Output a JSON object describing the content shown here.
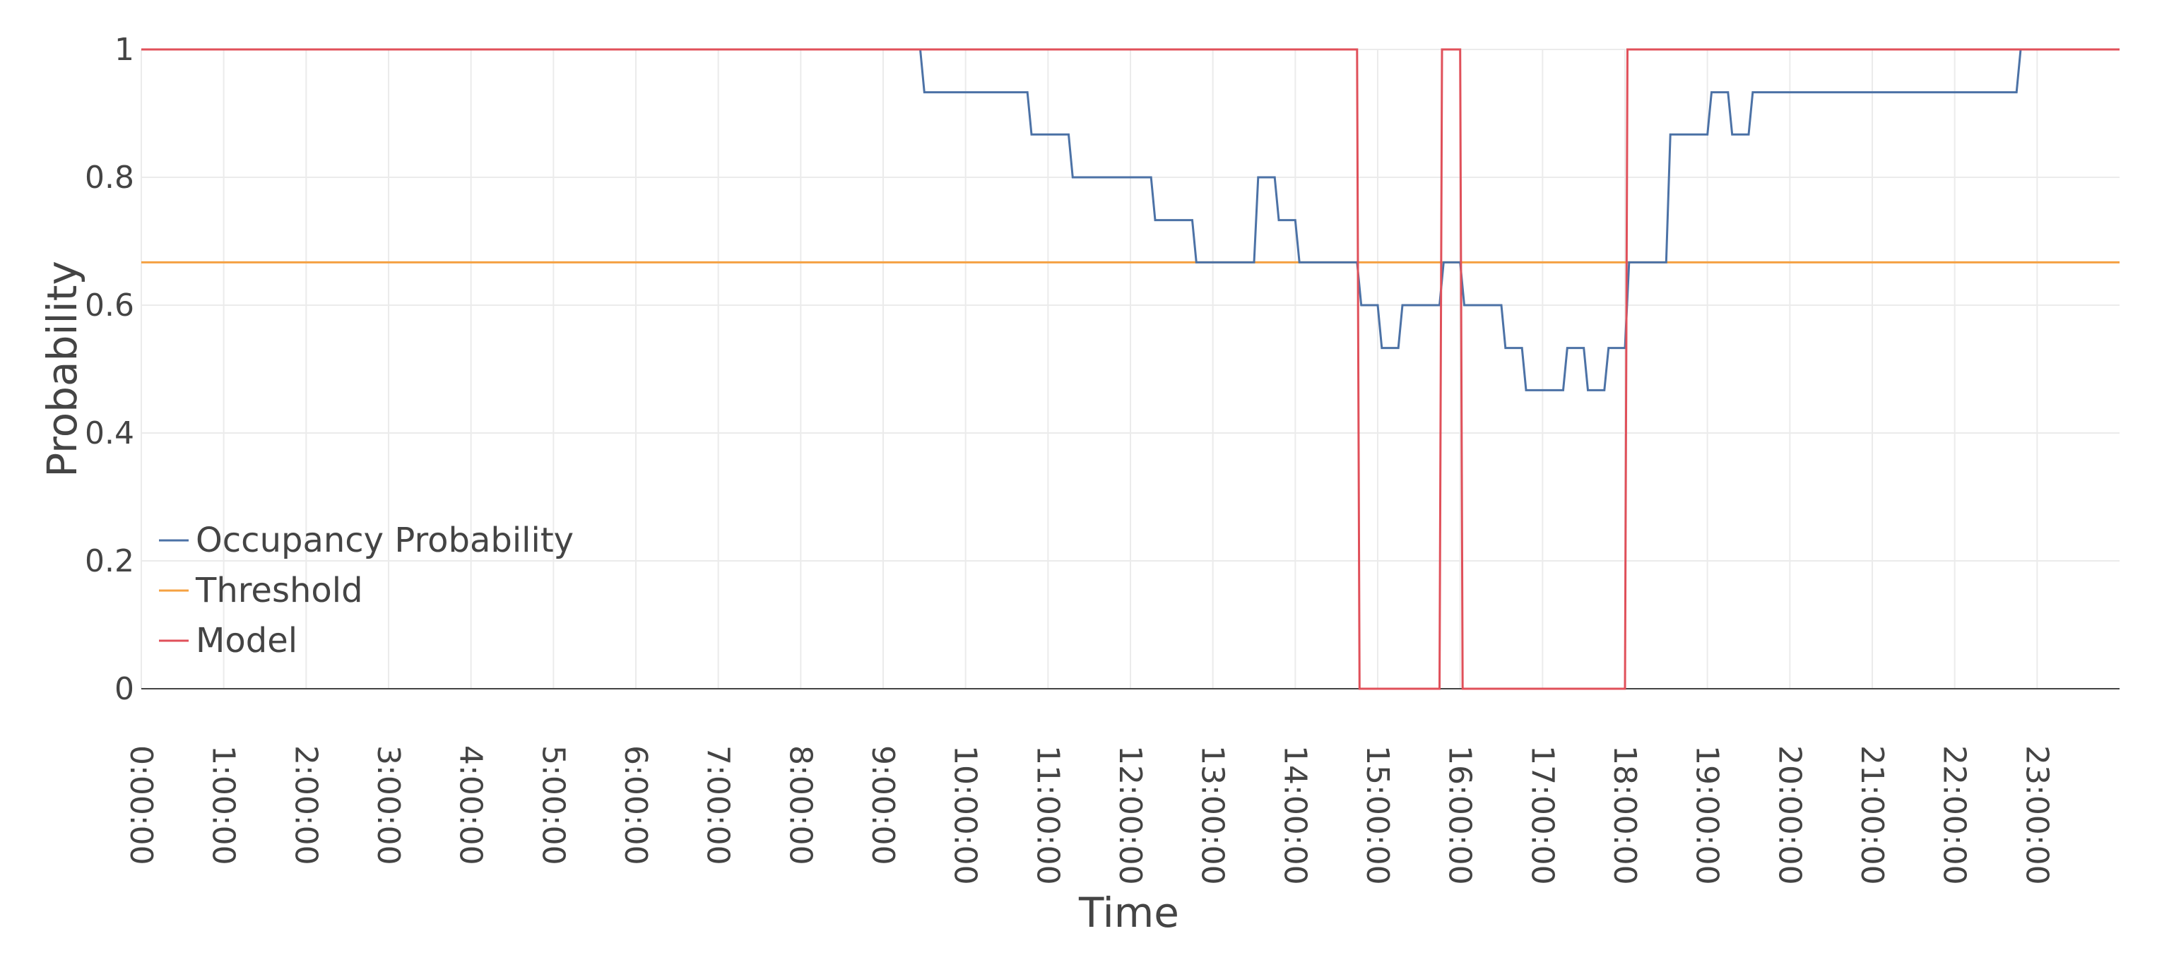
{
  "chart_data": {
    "type": "line",
    "xlabel": "Time",
    "ylabel": "Probability",
    "xlim": [
      0,
      24
    ],
    "ylim": [
      0,
      1
    ],
    "x_ticks": [
      {
        "hour": 0,
        "label": "0:00:00"
      },
      {
        "hour": 1,
        "label": "1:00:00"
      },
      {
        "hour": 2,
        "label": "2:00:00"
      },
      {
        "hour": 3,
        "label": "3:00:00"
      },
      {
        "hour": 4,
        "label": "4:00:00"
      },
      {
        "hour": 5,
        "label": "5:00:00"
      },
      {
        "hour": 6,
        "label": "6:00:00"
      },
      {
        "hour": 7,
        "label": "7:00:00"
      },
      {
        "hour": 8,
        "label": "8:00:00"
      },
      {
        "hour": 9,
        "label": "9:00:00"
      },
      {
        "hour": 10,
        "label": "10:00:00"
      },
      {
        "hour": 11,
        "label": "11:00:00"
      },
      {
        "hour": 12,
        "label": "12:00:00"
      },
      {
        "hour": 13,
        "label": "13:00:00"
      },
      {
        "hour": 14,
        "label": "14:00:00"
      },
      {
        "hour": 15,
        "label": "15:00:00"
      },
      {
        "hour": 16,
        "label": "16:00:00"
      },
      {
        "hour": 17,
        "label": "17:00:00"
      },
      {
        "hour": 18,
        "label": "18:00:00"
      },
      {
        "hour": 19,
        "label": "19:00:00"
      },
      {
        "hour": 20,
        "label": "20:00:00"
      },
      {
        "hour": 21,
        "label": "21:00:00"
      },
      {
        "hour": 22,
        "label": "22:00:00"
      },
      {
        "hour": 23,
        "label": "23:00:00"
      }
    ],
    "y_ticks": [
      {
        "value": 0,
        "label": "0"
      },
      {
        "value": 0.2,
        "label": "0.2"
      },
      {
        "value": 0.4,
        "label": "0.4"
      },
      {
        "value": 0.6,
        "label": "0.6"
      },
      {
        "value": 0.8,
        "label": "0.8"
      },
      {
        "value": 1,
        "label": "1"
      }
    ],
    "grid": true,
    "legend_position": "bottom-left",
    "series": [
      {
        "name": "Occupancy Probability",
        "color": "#4c72a6",
        "x": [
          0,
          9.45,
          9.5,
          10.75,
          10.8,
          11.25,
          11.3,
          12.25,
          12.3,
          12.75,
          12.8,
          13.5,
          13.55,
          13.75,
          13.8,
          14.0,
          14.05,
          14.75,
          14.8,
          15.0,
          15.05,
          15.25,
          15.3,
          15.75,
          15.8,
          16.0,
          16.05,
          16.5,
          16.55,
          16.75,
          16.8,
          17.25,
          17.3,
          17.5,
          17.55,
          17.75,
          17.8,
          18.0,
          18.05,
          18.5,
          18.55,
          19.0,
          19.05,
          19.25,
          19.3,
          19.5,
          19.55,
          22.75,
          22.8,
          24
        ],
        "y": [
          1,
          1,
          0.933,
          0.933,
          0.867,
          0.867,
          0.8,
          0.8,
          0.733,
          0.733,
          0.667,
          0.667,
          0.8,
          0.8,
          0.733,
          0.733,
          0.667,
          0.667,
          0.6,
          0.6,
          0.533,
          0.533,
          0.6,
          0.6,
          0.667,
          0.667,
          0.6,
          0.6,
          0.533,
          0.533,
          0.467,
          0.467,
          0.533,
          0.533,
          0.467,
          0.467,
          0.533,
          0.533,
          0.667,
          0.667,
          0.867,
          0.867,
          0.933,
          0.933,
          0.867,
          0.867,
          0.933,
          0.933,
          1,
          1
        ]
      },
      {
        "name": "Threshold",
        "color": "#f5a142",
        "x": [
          0,
          24
        ],
        "y": [
          0.667,
          0.667
        ]
      },
      {
        "name": "Model",
        "color": "#e0505a",
        "x": [
          0,
          14.75,
          14.78,
          15.75,
          15.78,
          16.0,
          16.03,
          18.0,
          18.03,
          24
        ],
        "y": [
          1,
          1,
          0,
          0,
          1,
          1,
          0,
          0,
          1,
          1
        ]
      }
    ]
  }
}
